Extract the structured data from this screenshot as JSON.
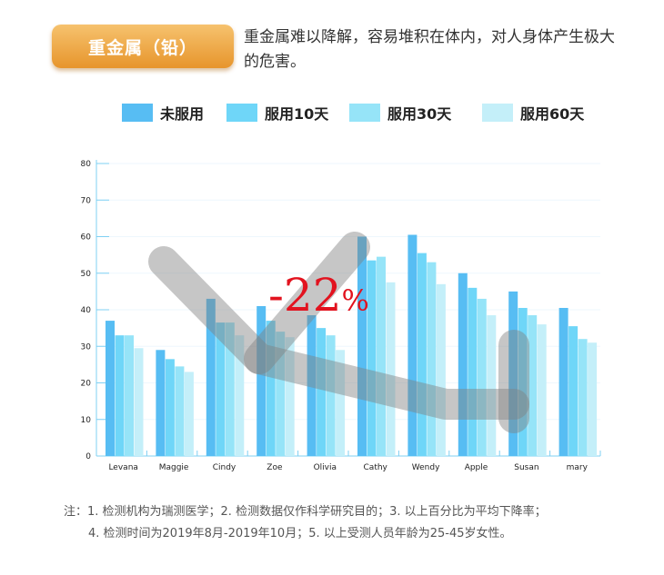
{
  "header": {
    "badge": "重金属（铅）",
    "description": "重金属难以降解，容易堆积在体内，对人身体产生极大的危害。"
  },
  "colors": [
    "#57bdf3",
    "#6fd6f8",
    "#96e4f8",
    "#c4eff9"
  ],
  "chart_data": {
    "type": "bar",
    "categories": [
      "Levana",
      "Maggie",
      "Cindy",
      "Zoe",
      "Olivia",
      "Cathy",
      "Wendy",
      "Apple",
      "Susan",
      "mary"
    ],
    "series": [
      {
        "name": "未服用",
        "values": [
          37,
          29,
          43,
          41,
          38.5,
          60,
          60.5,
          50,
          45,
          40.5
        ]
      },
      {
        "name": "服用10天",
        "values": [
          33,
          26.5,
          36.5,
          37,
          35,
          53.5,
          55.5,
          46,
          40.5,
          35.5
        ]
      },
      {
        "name": "服用30天",
        "values": [
          33,
          24.5,
          36.5,
          34,
          33,
          54.5,
          53,
          43,
          38.5,
          32
        ]
      },
      {
        "name": "服用60天",
        "values": [
          29.5,
          23,
          33,
          32.5,
          29,
          47.5,
          47,
          38.5,
          36,
          31
        ]
      }
    ],
    "ylim": [
      0,
      80
    ],
    "yticks": [
      "0",
      "10",
      "20",
      "30",
      "40",
      "50",
      "60",
      "70",
      "80"
    ],
    "annotation": "-22%",
    "legend_position": "top"
  },
  "footnote": {
    "line1": "注：1. 检测机构为瑞测医学；2. 检测数据仅作科学研究目的；3. 以上百分比为平均下降率；",
    "line2": "4. 检测时间为2019年8月-2019年10月；5. 以上受测人员年龄为25-45岁女性。"
  }
}
